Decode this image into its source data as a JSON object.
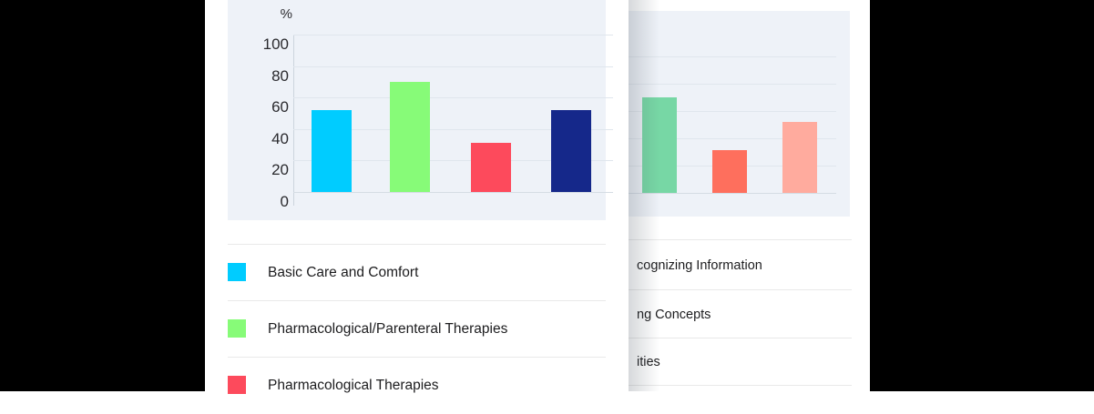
{
  "window": {
    "backdrop_color": "#000000",
    "page_background": "#ffffff",
    "panel_background": "#eef2f8",
    "gridline_color": "#e0e6ed",
    "divider_color": "#e9e9e9",
    "text_color": "#1c1c1e"
  },
  "chart_data": [
    {
      "type": "bar",
      "title": "",
      "ylabel": "%",
      "ylim": [
        0,
        100
      ],
      "yticks": [
        0,
        20,
        40,
        60,
        80,
        100
      ],
      "grid": true,
      "legend_position": "below",
      "categories": [
        "Basic Care and Comfort",
        "Pharmacological/Parenteral Therapies",
        "Pharmacological Therapies",
        null
      ],
      "values": [
        52,
        70,
        31,
        52
      ],
      "colors": [
        "#00ccff",
        "#87fb78",
        "#fd4a5c",
        "#15288a"
      ],
      "legend": [
        {
          "label": "Basic Care and Comfort",
          "color": "#00ccff"
        },
        {
          "label": "Pharmacological/Parenteral Therapies",
          "color": "#87fb78"
        },
        {
          "label": "Pharmacological Therapies",
          "color": "#fd4a5c"
        }
      ]
    },
    {
      "type": "bar",
      "ylim": [
        0,
        100
      ],
      "grid": true,
      "values": [
        70,
        31,
        52
      ],
      "colors": [
        "#77d7a5",
        "#fe6f5d",
        "#ffab9e"
      ],
      "list_rows_visible_text": [
        "cognizing Information",
        "ng Concepts",
        "ities"
      ]
    }
  ]
}
